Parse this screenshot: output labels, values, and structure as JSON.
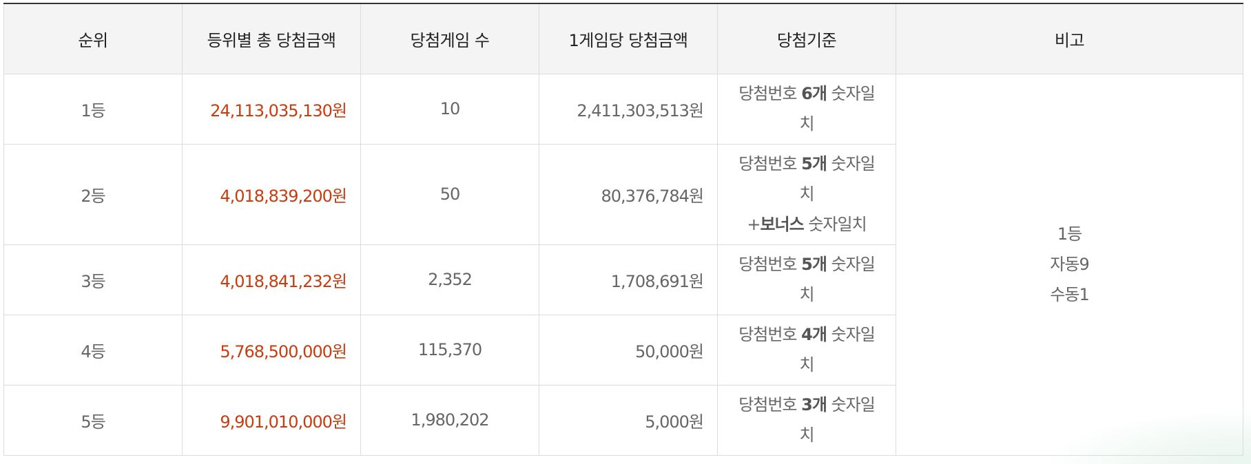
{
  "headers": {
    "rank": "순위",
    "total_prize": "등위별 총 당첨금액",
    "winning_games": "당첨게임 수",
    "prize_per_game": "1게임당 당첨금액",
    "criteria": "당첨기준",
    "note": "비고"
  },
  "rows": [
    {
      "rank": "1등",
      "total_prize": "24,113,035,130원",
      "winning_games": "10",
      "prize_per_game": "2,411,303,513원",
      "criteria": {
        "pre": "당첨번호 ",
        "bold": "6개",
        "post": " 숫자일치"
      }
    },
    {
      "rank": "2등",
      "total_prize": "4,018,839,200원",
      "winning_games": "50",
      "prize_per_game": "80,376,784원",
      "criteria": {
        "pre": "당첨번호 ",
        "bold": "5개",
        "post": " 숫자일치",
        "line2_pre": "+",
        "line2_bold": "보너스",
        "line2_post": " 숫자일치"
      }
    },
    {
      "rank": "3등",
      "total_prize": "4,018,841,232원",
      "winning_games": "2,352",
      "prize_per_game": "1,708,691원",
      "criteria": {
        "pre": "당첨번호 ",
        "bold": "5개",
        "post": " 숫자일치"
      }
    },
    {
      "rank": "4등",
      "total_prize": "5,768,500,000원",
      "winning_games": "115,370",
      "prize_per_game": "50,000원",
      "criteria": {
        "pre": "당첨번호 ",
        "bold": "4개",
        "post": " 숫자일치"
      }
    },
    {
      "rank": "5등",
      "total_prize": "9,901,010,000원",
      "winning_games": "1,980,202",
      "prize_per_game": "5,000원",
      "criteria": {
        "pre": "당첨번호 ",
        "bold": "3개",
        "post": " 숫자일치"
      }
    }
  ],
  "note": {
    "line1": "1등",
    "line2": "자동9",
    "line3": "수동1"
  },
  "colors": {
    "total_prize_text": "#c63d0f",
    "header_bg": "#f4f4f4",
    "border": "#dcdcdc"
  }
}
